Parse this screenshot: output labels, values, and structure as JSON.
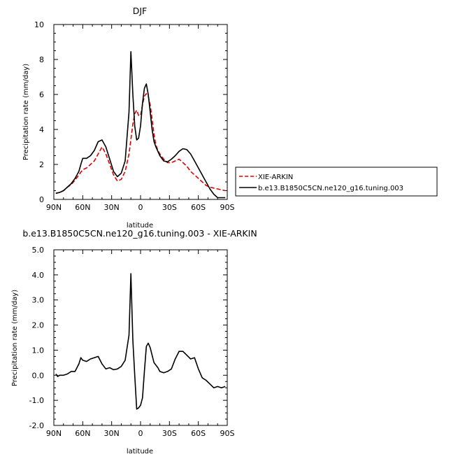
{
  "chart_data": [
    {
      "type": "line",
      "title": "DJF",
      "xlabel": "latitude",
      "ylabel": "Precipitation rate (mm/day)",
      "xlim": [
        90,
        -90
      ],
      "ylim": [
        0,
        10
      ],
      "x_ticks": [
        90,
        60,
        30,
        0,
        -30,
        -60,
        -90
      ],
      "x_tick_labels": [
        "90N",
        "60N",
        "30N",
        "0",
        "30S",
        "60S",
        "90S"
      ],
      "y_ticks": [
        0,
        2,
        4,
        6,
        8,
        10
      ],
      "y_tick_labels": [
        "0",
        "2",
        "4",
        "6",
        "8",
        "10"
      ],
      "legend": "right, outside plot",
      "series": [
        {
          "name": "XIE-ARKIN",
          "color": "#e00000",
          "style": "dashed",
          "x": [
            88,
            84,
            80,
            76,
            72,
            68,
            64,
            60,
            56,
            52,
            48,
            44,
            40,
            36,
            32,
            28,
            24,
            20,
            16,
            12,
            8,
            6,
            4,
            2,
            0,
            -2,
            -4,
            -6,
            -8,
            -10,
            -12,
            -14,
            -16,
            -18,
            -20,
            -24,
            -28,
            -32,
            -36,
            -40,
            -44,
            -48,
            -52,
            -56,
            -60,
            -64,
            -68,
            -72,
            -76,
            -80,
            -84,
            -88
          ],
          "y": [
            0.35,
            0.4,
            0.5,
            0.7,
            0.85,
            1.1,
            1.4,
            1.7,
            1.8,
            2.0,
            2.2,
            2.6,
            3.0,
            2.6,
            2.0,
            1.4,
            1.05,
            1.15,
            1.6,
            2.6,
            4.3,
            4.9,
            5.1,
            4.8,
            4.8,
            5.4,
            5.9,
            6.05,
            5.9,
            5.4,
            4.6,
            3.7,
            3.1,
            2.8,
            2.6,
            2.3,
            2.1,
            2.1,
            2.2,
            2.3,
            2.1,
            1.9,
            1.6,
            1.4,
            1.2,
            1.0,
            0.8,
            0.7,
            0.65,
            0.6,
            0.55,
            0.5
          ]
        },
        {
          "name": "b.e13.B1850C5CN.ne120_g16.tuning.003",
          "color": "#000000",
          "style": "solid",
          "x": [
            88,
            84,
            80,
            76,
            72,
            68,
            64,
            62,
            60,
            56,
            52,
            48,
            44,
            40,
            36,
            32,
            28,
            24,
            20,
            16,
            12,
            10,
            8,
            6,
            4,
            2,
            0,
            -2,
            -4,
            -6,
            -8,
            -10,
            -12,
            -14,
            -16,
            -18,
            -20,
            -24,
            -28,
            -32,
            -36,
            -40,
            -44,
            -48,
            -52,
            -56,
            -60,
            -64,
            -68,
            -72,
            -76,
            -80,
            -84,
            -88
          ],
          "y": [
            0.35,
            0.4,
            0.5,
            0.7,
            0.9,
            1.2,
            1.6,
            2.0,
            2.35,
            2.35,
            2.5,
            2.8,
            3.3,
            3.4,
            3.0,
            2.3,
            1.6,
            1.3,
            1.5,
            2.2,
            5.0,
            8.45,
            6.0,
            4.2,
            3.4,
            3.5,
            4.2,
            5.5,
            6.35,
            6.6,
            6.0,
            5.0,
            4.0,
            3.3,
            3.0,
            2.75,
            2.5,
            2.2,
            2.15,
            2.3,
            2.5,
            2.75,
            2.9,
            2.85,
            2.6,
            2.2,
            1.8,
            1.4,
            1.0,
            0.6,
            0.3,
            0.1,
            0.1,
            0.1
          ]
        }
      ]
    },
    {
      "type": "line",
      "title": "b.e13.B1850C5CN.ne120_g16.tuning.003 - XIE-ARKIN",
      "xlabel": "latitude",
      "ylabel": "Precipitation rate (mm/day)",
      "xlim": [
        90,
        -90
      ],
      "ylim": [
        -2.0,
        5.0
      ],
      "x_ticks": [
        90,
        60,
        30,
        0,
        -30,
        -60,
        -90
      ],
      "x_tick_labels": [
        "90N",
        "60N",
        "30N",
        "0",
        "30S",
        "60S",
        "90S"
      ],
      "y_ticks": [
        -2,
        -1,
        0,
        1,
        2,
        3,
        4,
        5
      ],
      "y_tick_labels": [
        "-2.0",
        "-1.0",
        "0.0",
        "1.0",
        "2.0",
        "3.0",
        "4.0",
        "5.0"
      ],
      "series": [
        {
          "color": "#000000",
          "style": "solid",
          "x": [
            88,
            86,
            84,
            80,
            76,
            72,
            68,
            64,
            62,
            60,
            56,
            52,
            48,
            44,
            40,
            36,
            32,
            28,
            24,
            20,
            16,
            12,
            10,
            8,
            6,
            4,
            2,
            0,
            -2,
            -4,
            -6,
            -8,
            -10,
            -12,
            -14,
            -16,
            -18,
            -20,
            -24,
            -28,
            -32,
            -36,
            -40,
            -44,
            -48,
            -52,
            -56,
            -60,
            -64,
            -68,
            -72,
            -76,
            -80,
            -84,
            -88
          ],
          "y": [
            0.05,
            -0.05,
            0.0,
            0.0,
            0.05,
            0.15,
            0.15,
            0.45,
            0.7,
            0.6,
            0.55,
            0.65,
            0.7,
            0.75,
            0.45,
            0.25,
            0.3,
            0.22,
            0.25,
            0.35,
            0.6,
            1.6,
            4.05,
            1.4,
            0.0,
            -1.35,
            -1.3,
            -1.2,
            -0.9,
            0.15,
            1.15,
            1.28,
            1.1,
            0.8,
            0.5,
            0.4,
            0.3,
            0.15,
            0.1,
            0.15,
            0.25,
            0.65,
            0.95,
            0.95,
            0.8,
            0.65,
            0.7,
            0.25,
            -0.1,
            -0.2,
            -0.35,
            -0.5,
            -0.45,
            -0.5,
            -0.45
          ]
        }
      ]
    }
  ]
}
